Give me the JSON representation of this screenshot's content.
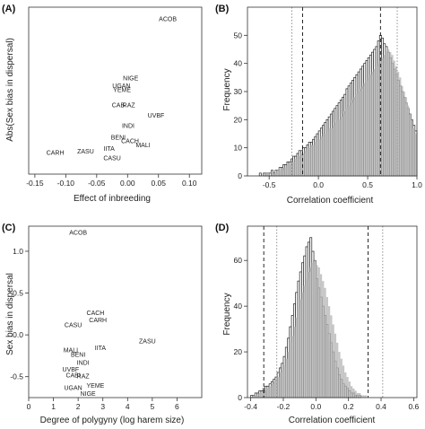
{
  "chart_data": [
    {
      "panel": "(A)",
      "type": "scatter",
      "xlabel": "Effect of inbreeding",
      "ylabel": "Abs(Sex bias in dispersal)",
      "xlim": [
        -0.16,
        0.12
      ],
      "ylim": [
        0,
        1.3
      ],
      "xticks": [
        "-0.15",
        "-0.10",
        "-0.05",
        "0.00",
        "0.05",
        "0.10"
      ],
      "xtick_values": [
        -0.15,
        -0.1,
        -0.05,
        0.0,
        0.05,
        0.1
      ],
      "yticks": [],
      "points": [
        {
          "label": "ACOB",
          "x": 0.065,
          "y": 1.19
        },
        {
          "label": "NIGE",
          "x": 0.005,
          "y": 0.73
        },
        {
          "label": "UGAN",
          "x": -0.01,
          "y": 0.67
        },
        {
          "label": "YEME",
          "x": -0.009,
          "y": 0.64
        },
        {
          "label": "CAB",
          "x": -0.015,
          "y": 0.52
        },
        {
          "label": "RAZ",
          "x": 0.002,
          "y": 0.52
        },
        {
          "label": "UVBF",
          "x": 0.046,
          "y": 0.44
        },
        {
          "label": "INDI",
          "x": 0.001,
          "y": 0.36
        },
        {
          "label": "BENI",
          "x": -0.015,
          "y": 0.27
        },
        {
          "label": "CACH",
          "x": 0.004,
          "y": 0.24
        },
        {
          "label": "MALI",
          "x": 0.025,
          "y": 0.21
        },
        {
          "label": "IITA",
          "x": -0.03,
          "y": 0.18
        },
        {
          "label": "ZASU",
          "x": -0.068,
          "y": 0.16
        },
        {
          "label": "CARH",
          "x": -0.117,
          "y": 0.15
        },
        {
          "label": "CASU",
          "x": -0.025,
          "y": 0.11
        }
      ]
    },
    {
      "panel": "(B)",
      "type": "bar",
      "xlabel": "Correlation coefficient",
      "ylabel": "Frequency",
      "xlim": [
        -0.72,
        1.0
      ],
      "ylim": [
        0,
        60
      ],
      "xticks": [
        "-0.5",
        "0.0",
        "0.5",
        "1.0"
      ],
      "xtick_values": [
        -0.5,
        0.0,
        0.5,
        1.0
      ],
      "yticks": [
        "0",
        "10",
        "20",
        "30",
        "40",
        "50"
      ],
      "ytick_values": [
        0,
        10,
        20,
        30,
        40,
        50
      ],
      "bin_start": -0.6,
      "bin_width": 0.02,
      "series": [
        {
          "values": [
            1,
            0,
            1,
            1,
            1,
            1,
            2,
            1,
            2,
            2,
            3,
            3,
            4,
            4,
            5,
            5,
            6,
            7,
            7,
            8,
            9,
            9,
            10,
            10,
            11,
            12,
            12,
            13,
            14,
            15,
            16,
            17,
            18,
            19,
            20,
            21,
            22,
            23,
            24,
            25,
            26,
            27,
            28,
            29,
            31,
            32,
            33,
            34,
            35,
            36,
            37,
            38,
            39,
            40,
            41,
            42,
            43,
            44,
            45,
            46,
            48,
            50,
            49,
            47,
            46,
            44,
            42,
            40,
            38,
            36,
            34,
            32,
            30,
            28,
            26,
            24,
            22,
            20,
            18,
            16
          ]
        },
        {
          "values": [
            0,
            0,
            0,
            1,
            1,
            0,
            1,
            1,
            1,
            2,
            2,
            2,
            3,
            3,
            4,
            4,
            5,
            5,
            6,
            6,
            7,
            8,
            8,
            9,
            10,
            10,
            11,
            11,
            12,
            13,
            13,
            14,
            15,
            15,
            16,
            17,
            17,
            18,
            19,
            20,
            20,
            21,
            22,
            23,
            24,
            25,
            26,
            27,
            28,
            29,
            30,
            31,
            32,
            33,
            34,
            35,
            36,
            37,
            38,
            39,
            40,
            41,
            42,
            43,
            44,
            45,
            44,
            43,
            41,
            39,
            37,
            35,
            32,
            30,
            28,
            25,
            22,
            20,
            17,
            15
          ]
        }
      ],
      "vlines": [
        {
          "x": -0.16,
          "style": "dashed"
        },
        {
          "x": 0.63,
          "style": "dashed"
        },
        {
          "x": -0.27,
          "style": "dotted"
        },
        {
          "x": 0.8,
          "style": "dotted"
        }
      ]
    },
    {
      "panel": "(C)",
      "type": "scatter",
      "xlabel": "Degree of polygyny (log harem size)",
      "ylabel": "Sex bias in dispersal",
      "xlim": [
        0,
        7
      ],
      "ylim": [
        -0.75,
        1.3
      ],
      "xticks": [
        "0",
        "1",
        "2",
        "3",
        "4",
        "5",
        "6"
      ],
      "xtick_values": [
        0,
        1,
        2,
        3,
        4,
        5,
        6
      ],
      "yticks": [
        "-0.5",
        "0.0",
        "0.5",
        "1.0"
      ],
      "ytick_values": [
        -0.5,
        0.0,
        0.5,
        1.0
      ],
      "points": [
        {
          "label": "ACOB",
          "x": 2.0,
          "y": 1.2
        },
        {
          "label": "CACH",
          "x": 2.7,
          "y": 0.24
        },
        {
          "label": "CARH",
          "x": 2.8,
          "y": 0.15
        },
        {
          "label": "CASU",
          "x": 1.8,
          "y": 0.09
        },
        {
          "label": "ZASU",
          "x": 4.8,
          "y": -0.1
        },
        {
          "label": "IITA",
          "x": 2.9,
          "y": -0.18
        },
        {
          "label": "MALI",
          "x": 1.7,
          "y": -0.21
        },
        {
          "label": "BENI",
          "x": 2.0,
          "y": -0.26
        },
        {
          "label": "INDI",
          "x": 2.2,
          "y": -0.36
        },
        {
          "label": "UVBF",
          "x": 1.7,
          "y": -0.44
        },
        {
          "label": "CABI",
          "x": 1.8,
          "y": -0.51
        },
        {
          "label": "RAZ",
          "x": 2.2,
          "y": -0.52
        },
        {
          "label": "YEME",
          "x": 2.7,
          "y": -0.63
        },
        {
          "label": "UGAN",
          "x": 1.8,
          "y": -0.66
        },
        {
          "label": "NIGE",
          "x": 2.4,
          "y": -0.73
        }
      ]
    },
    {
      "panel": "(D)",
      "type": "bar",
      "xlabel": "Correlation coefficient",
      "ylabel": "Frequency",
      "xlim": [
        -0.42,
        0.62
      ],
      "ylim": [
        0,
        75
      ],
      "xticks": [
        "-0.4",
        "-0.2",
        "0.0",
        "0.2",
        "0.4",
        "0.6"
      ],
      "xtick_values": [
        -0.4,
        -0.2,
        0.0,
        0.2,
        0.4,
        0.6
      ],
      "yticks": [
        "0",
        "20",
        "40",
        "60"
      ],
      "ytick_values": [
        0,
        20,
        40,
        60
      ],
      "bin_start": -0.4,
      "bin_width": 0.0125,
      "series": [
        {
          "values": [
            1,
            1,
            2,
            2,
            3,
            3,
            4,
            5,
            5,
            6,
            7,
            8,
            9,
            11,
            13,
            15,
            18,
            22,
            26,
            31,
            36,
            41,
            46,
            51,
            55,
            59,
            62,
            66,
            68,
            70,
            64,
            60,
            52,
            48,
            44,
            40,
            36,
            32,
            28,
            24,
            20,
            16,
            13,
            10,
            8,
            6,
            5,
            4,
            3,
            2,
            2,
            1,
            1,
            1,
            0,
            0,
            0,
            0
          ]
        },
        {
          "values": [
            0,
            1,
            1,
            1,
            2,
            2,
            2,
            3,
            4,
            5,
            6,
            7,
            8,
            9,
            11,
            12,
            14,
            17,
            20,
            24,
            27,
            31,
            35,
            39,
            43,
            46,
            49,
            52,
            55,
            57,
            59,
            60,
            58,
            57,
            54,
            51,
            48,
            44,
            40,
            36,
            32,
            28,
            24,
            20,
            17,
            14,
            11,
            9,
            7,
            5,
            4,
            3,
            2,
            2,
            1,
            1,
            1,
            0
          ]
        }
      ],
      "vlines": [
        {
          "x": -0.32,
          "style": "dashed"
        },
        {
          "x": 0.32,
          "style": "dashed"
        },
        {
          "x": -0.24,
          "style": "dotted"
        },
        {
          "x": 0.41,
          "style": "dotted"
        }
      ]
    }
  ]
}
